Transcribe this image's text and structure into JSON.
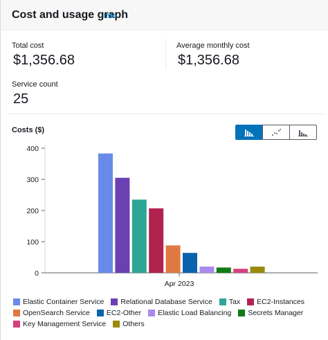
{
  "header": {
    "title": "Cost and usage graph",
    "info_label": "Info"
  },
  "metrics": {
    "total_cost_label": "Total cost",
    "total_cost_value": "$1,356.68",
    "avg_monthly_label": "Average monthly cost",
    "avg_monthly_value": "$1,356.68",
    "service_count_label": "Service count",
    "service_count_value": "25"
  },
  "chart_controls": {
    "selected": "bar",
    "options": [
      {
        "name": "bar-chart-icon"
      },
      {
        "name": "line-chart-icon"
      },
      {
        "name": "stacked-chart-icon"
      }
    ]
  },
  "chart_data": {
    "type": "bar",
    "title": "Costs ($)",
    "categories": [
      "Apr 2023"
    ],
    "ylim": [
      0,
      400
    ],
    "yticks": [
      "0",
      "100",
      "200",
      "300",
      "400"
    ],
    "grid": false,
    "legend_position": "bottom",
    "series": [
      {
        "name": "Elastic Container Service",
        "values": [
          383
        ],
        "color": "#688ae8"
      },
      {
        "name": "Relational Database Service",
        "values": [
          305
        ],
        "color": "#6b40b2"
      },
      {
        "name": "Tax",
        "values": [
          235
        ],
        "color": "#2ea597"
      },
      {
        "name": "EC2-Instances",
        "values": [
          207
        ],
        "color": "#b1234f"
      },
      {
        "name": "OpenSearch Service",
        "values": [
          88
        ],
        "color": "#e07941"
      },
      {
        "name": "EC2-Other",
        "values": [
          64
        ],
        "color": "#0a62ad"
      },
      {
        "name": "Elastic Load Balancing",
        "values": [
          20
        ],
        "color": "#a98bed"
      },
      {
        "name": "Secrets Manager",
        "values": [
          17
        ],
        "color": "#127a14"
      },
      {
        "name": "Key Management Service",
        "values": [
          13
        ],
        "color": "#d6407c"
      },
      {
        "name": "Others",
        "values": [
          20
        ],
        "color": "#9a8b0c"
      }
    ]
  }
}
